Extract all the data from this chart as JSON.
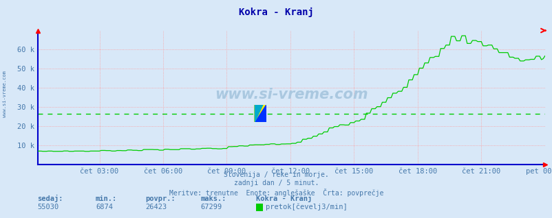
{
  "title": "Kokra - Kranj",
  "bg_color": "#d8e8f8",
  "plot_bg_color": "#d8e8f8",
  "line_color": "#00cc00",
  "avg_line_color": "#00cc00",
  "avg_value": 26423,
  "min_value": 6874,
  "max_value": 67299,
  "current_value": 55030,
  "ymin": 0,
  "ymax": 70000,
  "ytick_vals": [
    10000,
    20000,
    30000,
    40000,
    50000,
    60000
  ],
  "ytick_labels": [
    "10 k",
    "20 k",
    "30 k",
    "40 k",
    "50 k",
    "60 k"
  ],
  "xlabel_ticks": [
    "čet 03:00",
    "čet 06:00",
    "čet 09:00",
    "čet 12:00",
    "čet 15:00",
    "čet 18:00",
    "čet 21:00",
    "pet 00:00"
  ],
  "xlabel_fracs": [
    0.125,
    0.25,
    0.375,
    0.5,
    0.625,
    0.75,
    0.875,
    1.0
  ],
  "grid_color": "#ff9999",
  "title_color": "#0000aa",
  "axis_color": "#0000cc",
  "tick_color": "#4477aa",
  "subtitle_lines": [
    "Slovenija / reke in morje.",
    "zadnji dan / 5 minut.",
    "Meritve: trenutne  Enote: anglešaške  Črta: povprečje"
  ],
  "subtitle_color": "#4477aa",
  "bottom_label_color": "#4477aa",
  "watermark": "www.si-vreme.com",
  "watermark_color": "#aac8e0",
  "n_points": 288,
  "left_label": "www.si-vreme.com",
  "logo_colors": {
    "yellow": "#ffee00",
    "blue": "#0033ff",
    "cyan": "#00aacc"
  },
  "legend_color": "#00cc00",
  "legend_text": "pretok[čevelj3/min]"
}
